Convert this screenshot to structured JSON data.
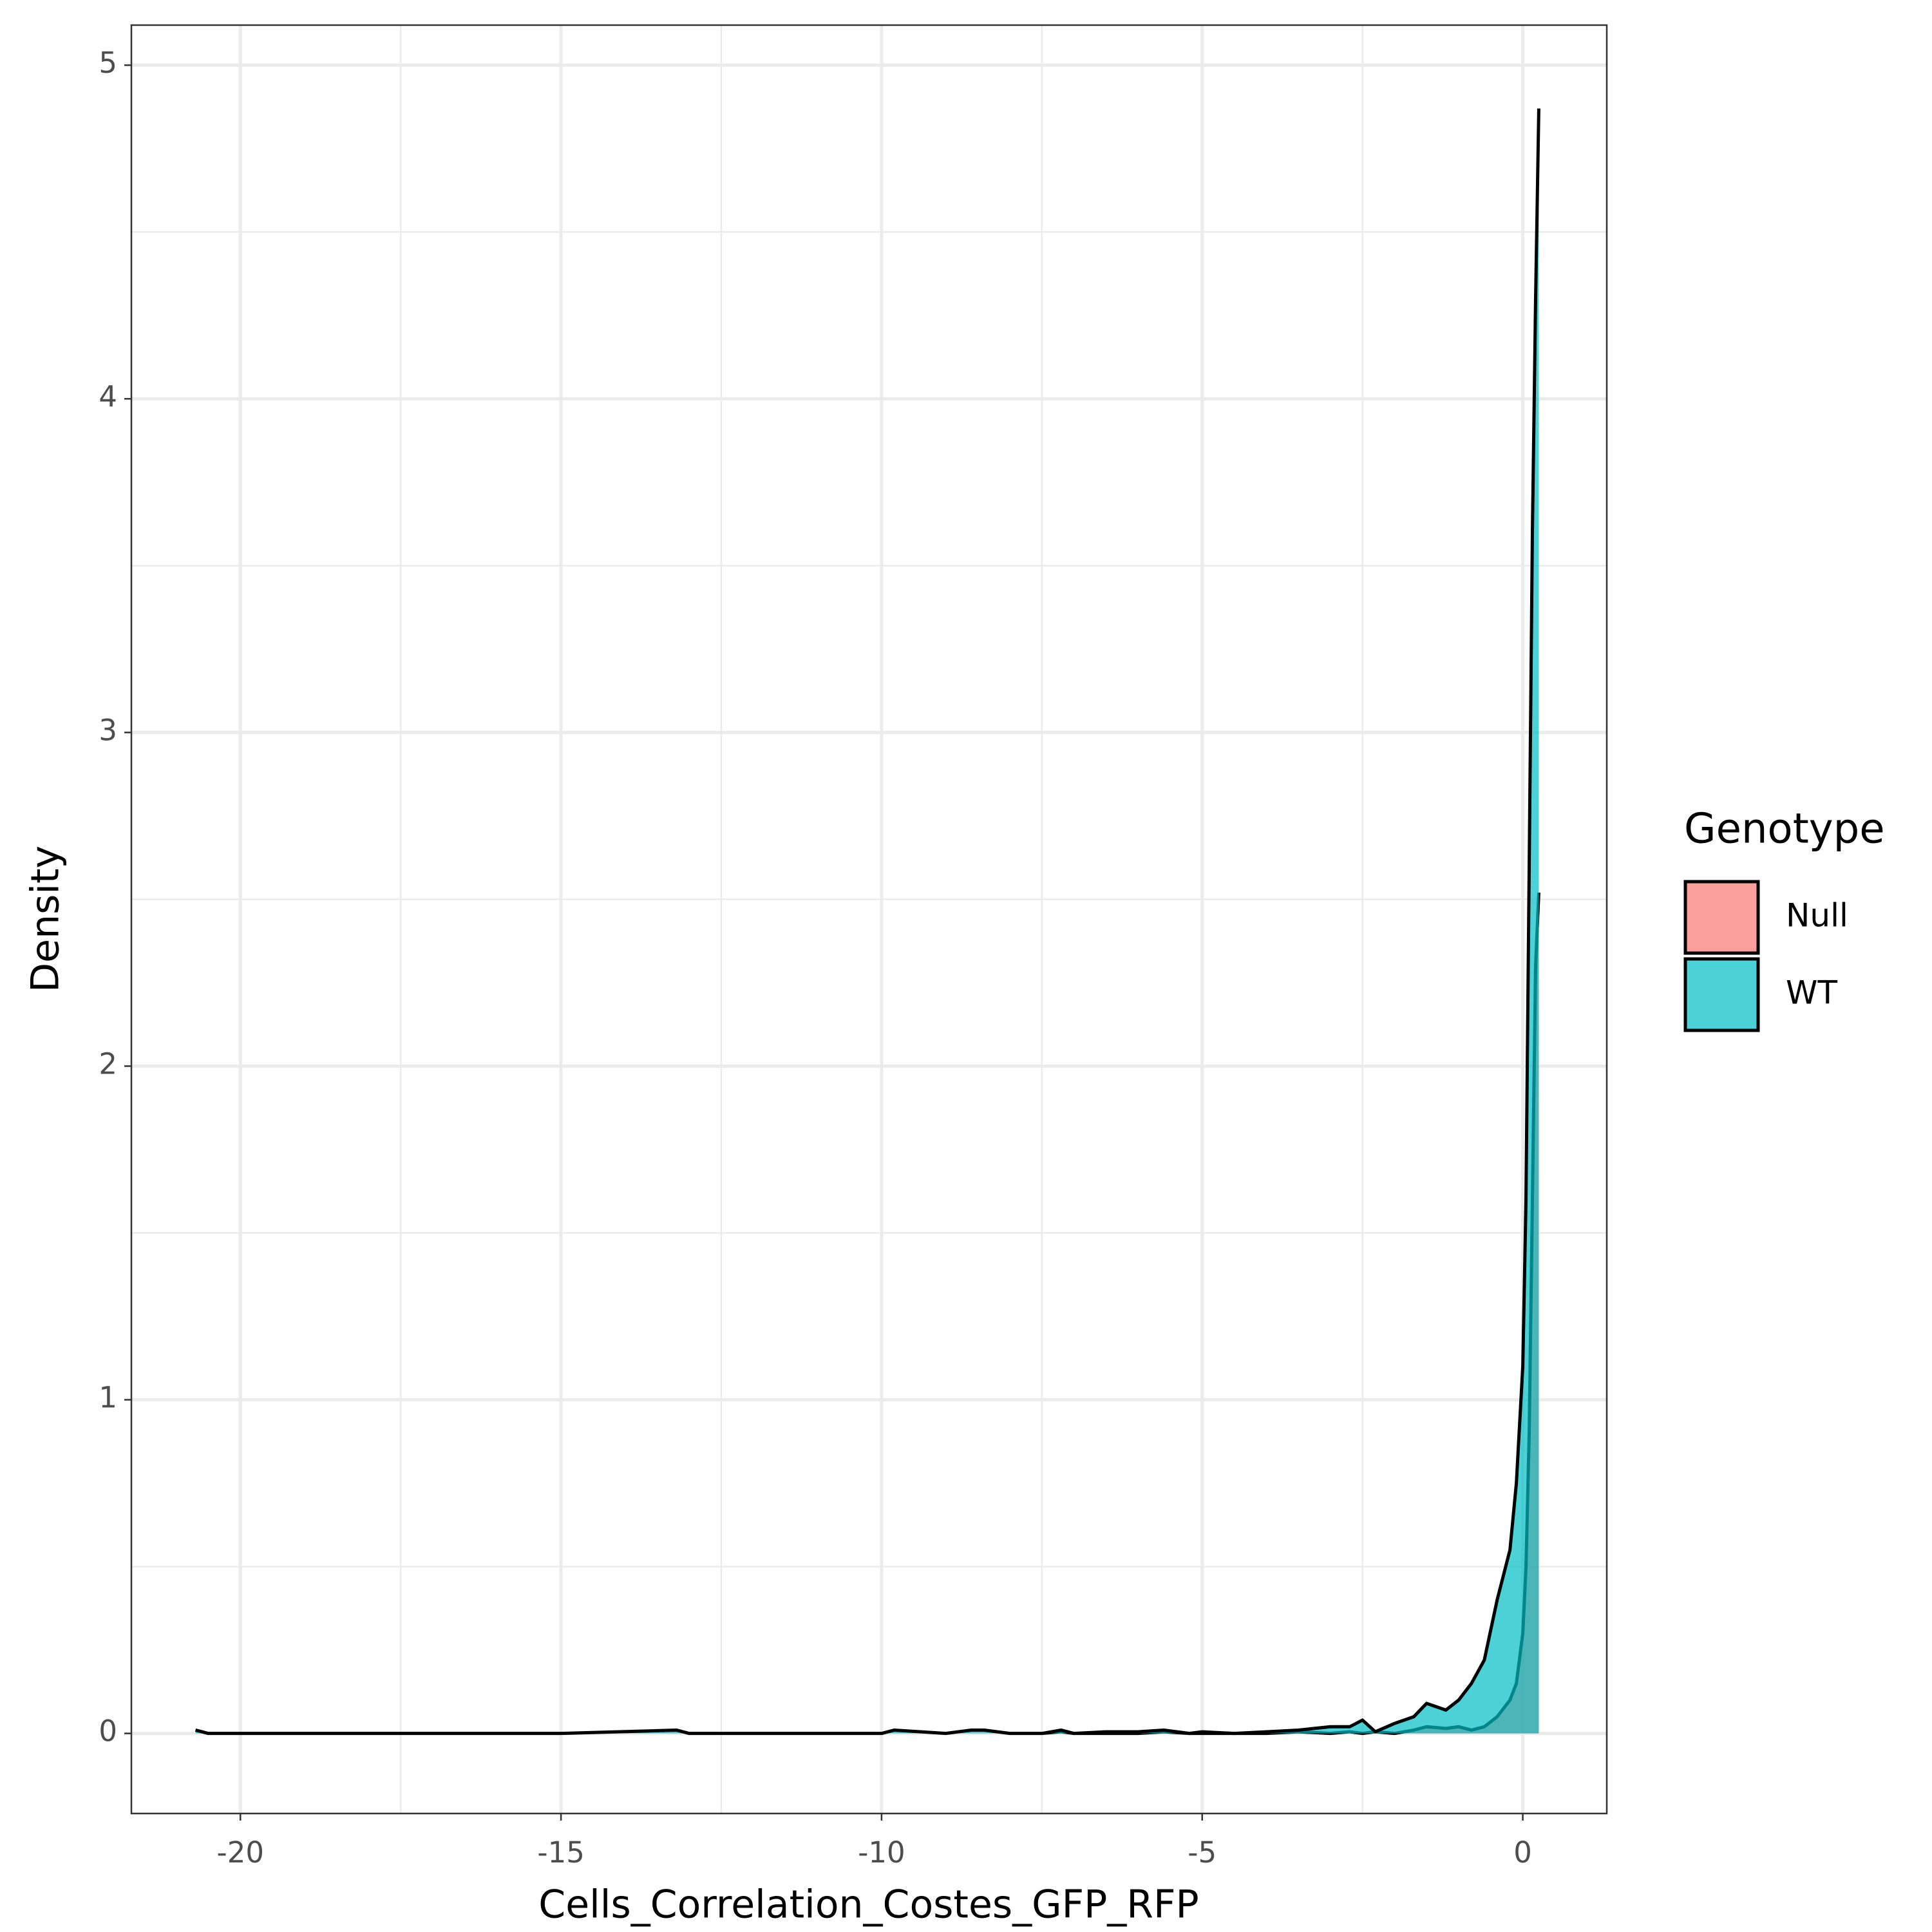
{
  "chart_data": {
    "type": "density",
    "x_label": "Cells_Correlation_Costes_GFP_RFP",
    "y_label": "Density",
    "legend_title": "Genotype",
    "legend_position": "right",
    "grid": true,
    "xlim": [
      -21.7,
      1.31
    ],
    "ylim": [
      -0.24,
      5.12
    ],
    "xticks": [
      -20,
      -15,
      -10,
      -5,
      0
    ],
    "yticks": [
      0,
      1,
      2,
      3,
      4,
      5
    ],
    "x": [
      -20.7,
      -20.5,
      -15,
      -13.2,
      -13,
      -10,
      -9.8,
      -9,
      -8.6,
      -8.4,
      -8,
      -7.5,
      -7.2,
      -7,
      -6.5,
      -6,
      -5.6,
      -5.2,
      -5,
      -4.5,
      -4,
      -3.5,
      -3,
      -2.7,
      -2.5,
      -2.3,
      -2,
      -1.7,
      -1.5,
      -1.2,
      -1,
      -0.8,
      -0.6,
      -0.4,
      -0.2,
      -0.1,
      0,
      0.05,
      0.1,
      0.15,
      0.2,
      0.25
    ],
    "series": [
      {
        "name": "Null",
        "color": "#F8766D",
        "values": [
          null,
          null,
          null,
          null,
          null,
          null,
          null,
          null,
          null,
          null,
          null,
          0,
          0.005,
          0,
          0,
          0,
          0.005,
          0,
          0,
          0,
          0,
          0.005,
          0,
          0.005,
          0,
          0.005,
          0,
          0.01,
          0.02,
          0.015,
          0.02,
          0.01,
          0.02,
          0.05,
          0.1,
          0.15,
          0.3,
          0.5,
          0.9,
          1.6,
          2.3,
          2.52
        ]
      },
      {
        "name": "WT",
        "color": "#00BFC4",
        "values": [
          0.01,
          0,
          0,
          0.01,
          0,
          0,
          0.01,
          0,
          0.01,
          0.01,
          0,
          0,
          0.01,
          0,
          0.005,
          0.005,
          0.01,
          0,
          0.005,
          0,
          0.005,
          0.01,
          0.02,
          0.02,
          0.04,
          0.005,
          0.03,
          0.05,
          0.09,
          0.07,
          0.1,
          0.15,
          0.22,
          0.4,
          0.55,
          0.75,
          1.1,
          1.6,
          2.6,
          3.6,
          4.3,
          4.87
        ]
      }
    ]
  }
}
